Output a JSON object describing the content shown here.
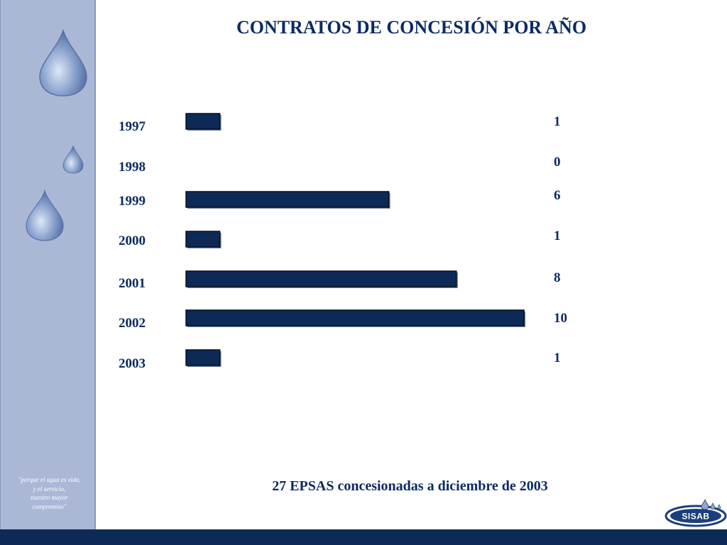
{
  "slide": {
    "title": "CONTRATOS DE CONCESIÓN POR AÑO",
    "summary": "27 EPSAS concesionadas a diciembre de 2003",
    "quote_lines": [
      "\"porque el agua es vida,",
      "y el servicio,",
      "nuestro mayor",
      "compromiso\""
    ],
    "logo_text": "SISAB"
  },
  "colors": {
    "bar": "#0d2a57",
    "text": "#0b2b63",
    "sidebar": "#aab8d6",
    "footer": "#0d2a57"
  },
  "chart_data": {
    "type": "bar",
    "orientation": "horizontal",
    "categories": [
      "1997",
      "1998",
      "1999",
      "2000",
      "2001",
      "2002",
      "2003"
    ],
    "values": [
      1,
      0,
      6,
      1,
      8,
      10,
      1
    ],
    "value_labels": [
      "1",
      "0",
      "6",
      "1",
      "8",
      "10",
      "1"
    ],
    "xlim": [
      0,
      10
    ],
    "grid": false,
    "legend": "none"
  }
}
